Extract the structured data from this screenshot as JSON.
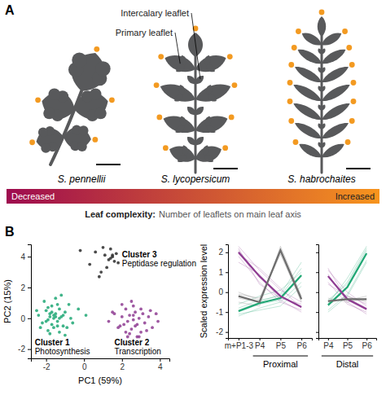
{
  "panel_letters": [
    "A",
    "B"
  ],
  "diagram": {
    "callouts": [
      "Intercalary leaflet",
      "Primary leaflet"
    ],
    "species": [
      "S. pennellii",
      "S. lycopersicum",
      "S. habrochaites"
    ],
    "gradient": {
      "low": "Decreased",
      "high": "Increased",
      "colors": [
        "#9e0b4f",
        "#f7941d"
      ]
    },
    "caption": {
      "term": "Leaf complexity:",
      "text": "Number of leaflets on main leaf axis"
    }
  },
  "chart_data": [
    {
      "type": "scatter",
      "xlabel": "PC1 (59%)",
      "ylabel": "PC2 (15%)",
      "xlim": [
        -2.8,
        4.5
      ],
      "ylim": [
        -2.6,
        4.8
      ],
      "xticks": [
        -2,
        0,
        2,
        4
      ],
      "yticks": [
        -2,
        0,
        2,
        4
      ],
      "grid": false,
      "series": [
        {
          "name": "Cluster 1",
          "label": "Photosynthesis",
          "color": "#1fa774",
          "x": [
            -2.4,
            -2.2,
            -2.0,
            -1.9,
            -1.8,
            -1.7,
            -1.6,
            -1.5,
            -1.4,
            -1.3,
            -1.2,
            -1.1,
            -1.0,
            -0.8,
            -0.6,
            -0.3,
            0.1,
            -2.1,
            -1.9,
            -1.7,
            -1.6,
            -1.5,
            -1.4,
            -1.8,
            -1.3,
            -1.2,
            -2.3,
            -1.0,
            -0.7,
            -1.6,
            -1.9,
            -1.4,
            -1.1,
            -2.0,
            -1.5,
            -1.7,
            -0.9,
            -1.3,
            -2.5,
            -1.8
          ],
          "y": [
            0.2,
            -0.3,
            0.5,
            -0.1,
            0.1,
            -0.4,
            0.0,
            0.3,
            -0.2,
            0.6,
            0.1,
            -0.5,
            0.4,
            0.9,
            -0.3,
            0.6,
            0.2,
            1.1,
            -0.8,
            0.8,
            -0.6,
            1.3,
            0.9,
            -1.0,
            -0.9,
            1.5,
            -0.6,
            -1.1,
            0.0,
            0.2,
            0.7,
            -0.5,
            0.2,
            -0.2,
            0.1,
            0.4,
            -0.6,
            0.0,
            0.5,
            0.3
          ]
        },
        {
          "name": "Cluster 2",
          "label": "Transcription",
          "color": "#8e3c92",
          "x": [
            1.3,
            1.6,
            1.8,
            2.0,
            2.1,
            2.2,
            2.3,
            2.4,
            2.5,
            2.6,
            2.7,
            2.8,
            2.9,
            3.0,
            3.1,
            3.2,
            3.4,
            3.6,
            3.9,
            2.0,
            2.4,
            2.6,
            2.8,
            3.0,
            2.2,
            2.5,
            2.7,
            3.3,
            1.9,
            2.9,
            3.5,
            2.3,
            2.6,
            1.5,
            3.8
          ],
          "y": [
            -0.2,
            0.3,
            -0.6,
            0.1,
            -0.4,
            0.6,
            -0.2,
            0.2,
            -0.7,
            -0.1,
            0.4,
            -0.4,
            0.0,
            -0.9,
            0.3,
            -0.3,
            0.1,
            -0.6,
            -0.2,
            0.9,
            -1.0,
            0.8,
            -1.2,
            0.6,
            -0.9,
            1.1,
            -0.5,
            -0.8,
            -0.5,
            -1.2,
            0.5,
            -1.2,
            0.2,
            0.4,
            0.3
          ]
        },
        {
          "name": "Cluster 3",
          "label": "Peptidase regulation",
          "color": "#2b2b2b",
          "x": [
            -0.2,
            0.3,
            0.6,
            0.9,
            1.1,
            1.3,
            1.4,
            1.5,
            1.6,
            1.7,
            1.2,
            0.8,
            1.4,
            1.8,
            1.0,
            1.5
          ],
          "y": [
            4.4,
            3.5,
            4.3,
            3.0,
            4.1,
            3.8,
            4.5,
            4.0,
            3.7,
            4.2,
            3.3,
            2.7,
            3.9,
            3.6,
            4.6,
            4.1
          ]
        }
      ]
    },
    {
      "type": "line",
      "xlabel": "Proximal",
      "ylabel": "Scaled expression level",
      "categories": [
        "m+P1-3",
        "P4",
        "P5",
        "P6"
      ],
      "ylim": [
        -2.3,
        2.4
      ],
      "yticks": [
        -2,
        -1,
        0,
        1,
        2
      ],
      "grid": false,
      "series": [
        {
          "color": "#1fa774",
          "line_style": "thin",
          "values": [
            -1.0,
            -0.6,
            -0.4,
            0.8
          ]
        },
        {
          "color": "#1fa774",
          "line_style": "thin",
          "values": [
            -0.8,
            -0.4,
            -0.2,
            1.2
          ]
        },
        {
          "color": "#1fa774",
          "line_style": "thin",
          "values": [
            -1.2,
            -0.8,
            -0.5,
            0.5
          ]
        },
        {
          "color": "#1fa774",
          "line_style": "thin",
          "values": [
            -0.6,
            -0.2,
            0.1,
            1.0
          ]
        },
        {
          "color": "#1fa774",
          "line_style": "thin",
          "values": [
            -1.1,
            -0.9,
            -0.7,
            0.3
          ]
        },
        {
          "color": "#1fa774",
          "line_style": "thin",
          "values": [
            -0.9,
            -0.5,
            -0.1,
            1.5
          ]
        },
        {
          "color": "#8e3c92",
          "line_style": "thin",
          "values": [
            2.1,
            0.8,
            -0.2,
            -0.7
          ]
        },
        {
          "color": "#8e3c92",
          "line_style": "thin",
          "values": [
            1.8,
            0.5,
            -0.5,
            -0.9
          ]
        },
        {
          "color": "#8e3c92",
          "line_style": "thin",
          "values": [
            2.3,
            1.1,
            0.1,
            -0.5
          ]
        },
        {
          "color": "#8e3c92",
          "line_style": "thin",
          "values": [
            1.5,
            0.9,
            -0.4,
            -1.0
          ]
        },
        {
          "color": "#8e3c92",
          "line_style": "thin",
          "values": [
            2.2,
            0.4,
            -0.3,
            -0.6
          ]
        },
        {
          "color": "#8e3c92",
          "line_style": "thin",
          "values": [
            1.9,
            1.2,
            0.2,
            -0.8
          ]
        },
        {
          "color": "#6d6d6d",
          "line_style": "thin",
          "values": [
            -0.3,
            -0.5,
            2.2,
            -0.3
          ]
        },
        {
          "color": "#6d6d6d",
          "line_style": "thin",
          "values": [
            -0.1,
            -0.3,
            2.0,
            -0.5
          ]
        },
        {
          "color": "#6d6d6d",
          "line_style": "thin",
          "values": [
            -0.5,
            -0.7,
            2.3,
            -0.2
          ]
        },
        {
          "color": "#6d6d6d",
          "line_style": "thin",
          "values": [
            0.0,
            -0.4,
            1.9,
            -0.4
          ]
        },
        {
          "color": "#1fa774",
          "line_style": "thick",
          "values": [
            -0.95,
            -0.55,
            -0.3,
            0.85
          ]
        },
        {
          "color": "#8e3c92",
          "line_style": "thick",
          "values": [
            2.0,
            0.8,
            -0.2,
            -0.75
          ]
        },
        {
          "color": "#6d6d6d",
          "line_style": "thick",
          "values": [
            -0.2,
            -0.5,
            2.1,
            -0.35
          ]
        }
      ]
    },
    {
      "type": "line",
      "xlabel": "Distal",
      "categories": [
        "P4",
        "P5",
        "P6"
      ],
      "ylim": [
        -2.3,
        2.4
      ],
      "yticks": [
        -2,
        -1,
        0,
        1,
        2
      ],
      "grid": false,
      "tick_labels": "x",
      "series": [
        {
          "color": "#1fa774",
          "line_style": "thin",
          "values": [
            -0.7,
            0.2,
            1.9
          ]
        },
        {
          "color": "#1fa774",
          "line_style": "thin",
          "values": [
            -0.5,
            0.5,
            2.2
          ]
        },
        {
          "color": "#1fa774",
          "line_style": "thin",
          "values": [
            -0.9,
            -0.1,
            1.6
          ]
        },
        {
          "color": "#1fa774",
          "line_style": "thin",
          "values": [
            -0.4,
            0.4,
            2.1
          ]
        },
        {
          "color": "#1fa774",
          "line_style": "thin",
          "values": [
            -1.0,
            -0.2,
            1.5
          ]
        },
        {
          "color": "#1fa774",
          "line_style": "thin",
          "values": [
            -0.6,
            0.7,
            2.3
          ]
        },
        {
          "color": "#8e3c92",
          "line_style": "thin",
          "values": [
            0.8,
            -0.3,
            -0.8
          ]
        },
        {
          "color": "#8e3c92",
          "line_style": "thin",
          "values": [
            0.5,
            -0.6,
            -1.0
          ]
        },
        {
          "color": "#8e3c92",
          "line_style": "thin",
          "values": [
            1.1,
            0.0,
            -0.7
          ]
        },
        {
          "color": "#8e3c92",
          "line_style": "thin",
          "values": [
            0.9,
            -0.5,
            -1.1
          ]
        },
        {
          "color": "#8e3c92",
          "line_style": "thin",
          "values": [
            0.4,
            -0.2,
            -0.6
          ]
        },
        {
          "color": "#8e3c92",
          "line_style": "thin",
          "values": [
            1.2,
            -0.4,
            -0.9
          ]
        },
        {
          "color": "#6d6d6d",
          "line_style": "thin",
          "values": [
            -0.5,
            -0.3,
            -0.4
          ]
        },
        {
          "color": "#6d6d6d",
          "line_style": "thin",
          "values": [
            -0.3,
            -0.5,
            -0.3
          ]
        },
        {
          "color": "#6d6d6d",
          "line_style": "thin",
          "values": [
            -0.6,
            -0.2,
            -0.5
          ]
        },
        {
          "color": "#6d6d6d",
          "line_style": "thin",
          "values": [
            -0.4,
            -0.4,
            -0.2
          ]
        },
        {
          "color": "#1fa774",
          "line_style": "thick",
          "values": [
            -0.65,
            0.25,
            1.95
          ]
        },
        {
          "color": "#8e3c92",
          "line_style": "thick",
          "values": [
            0.8,
            -0.35,
            -0.85
          ]
        },
        {
          "color": "#6d6d6d",
          "line_style": "thick",
          "values": [
            -0.45,
            -0.35,
            -0.35
          ]
        }
      ]
    }
  ]
}
